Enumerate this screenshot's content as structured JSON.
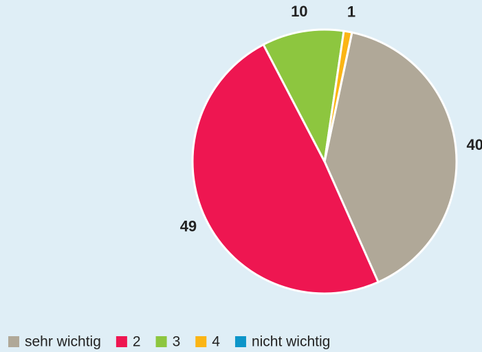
{
  "chart_data": {
    "type": "pie",
    "categories": [
      "sehr wichtig",
      "2",
      "3",
      "4",
      "nicht wichtig"
    ],
    "values": [
      40,
      49,
      10,
      1,
      0
    ],
    "colors": [
      "#b0a898",
      "#ee1651",
      "#8dc63f",
      "#fbb515",
      "#0d95c9"
    ],
    "legend": "bottom"
  }
}
